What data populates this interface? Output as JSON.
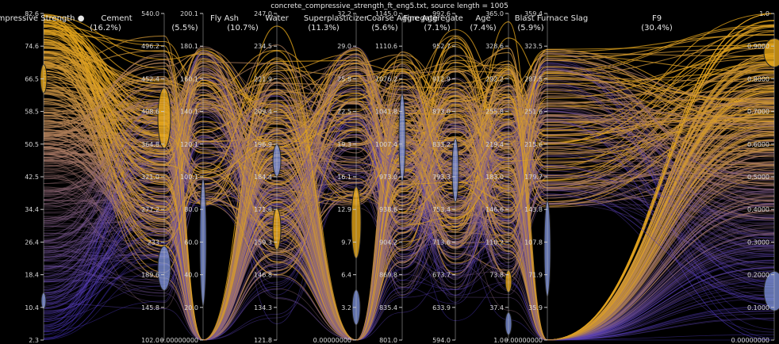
{
  "chart_data": {
    "type": "parallel-coordinates",
    "title": "concrete_compressive_strength_ft_eng5.txt, source length = 1005",
    "highlighted_axis": "Compressive Strength",
    "highlight_marker": "●",
    "colors": {
      "background": "#000000",
      "high": "#e8a817",
      "low": "#4a35c8",
      "axis_line": "#c9c9c9",
      "text": "#d8d8d8",
      "highlight_text": "#e8a817"
    },
    "axes": [
      {
        "name": "Compressive Strength",
        "percent": "",
        "min": 2.3,
        "max": 82.6,
        "ticks": [
          "82.6",
          "74.6",
          "66.5",
          "58.5",
          "50.5",
          "42.5",
          "34.4",
          "26.4",
          "18.4",
          "10.4",
          "2.3"
        ]
      },
      {
        "name": "Cement",
        "percent": "(16.2%)",
        "min": 102.0,
        "max": 540.0,
        "ticks": [
          "540.0",
          "496.2",
          "452.4",
          "408.6",
          "364.8",
          "321.0",
          "277.2",
          "233",
          "189.6",
          "145.8",
          "102.0"
        ]
      },
      {
        "name": "Fly Ash",
        "percent": "(5.5%)",
        "min": 0.0,
        "max": 200.1,
        "ticks": [
          "200.1",
          "180.1",
          "160.1",
          "140.1",
          "120.1",
          "100.1",
          "80.0",
          "60.0",
          "40.0",
          "20.0",
          "0.00000000"
        ]
      },
      {
        "name": "Water",
        "percent": "(10.7%)",
        "min": 121.8,
        "max": 247.0,
        "ticks": [
          "247.0",
          "234.5",
          "221.9",
          "209.4",
          "196.9",
          "184.4",
          "171.8",
          "159.3",
          "146.8",
          "134.3",
          "121.8"
        ]
      },
      {
        "name": "Superplasticizer",
        "percent": "(11.3%)",
        "min": 0.0,
        "max": 32.2,
        "ticks": [
          "32.2",
          "29.0",
          "25.8",
          "22.5",
          "19.3",
          "16.1",
          "12.9",
          "9.7",
          "6.4",
          "3.2",
          "0.00000000"
        ]
      },
      {
        "name": "Coarse Aggregate",
        "percent": "(5.6%)",
        "min": 801.0,
        "max": 1145.0,
        "ticks": [
          "1145.0",
          "1110.6",
          "1076.2",
          "1041.8",
          "1007.4",
          "973.0",
          "938.6",
          "904.2",
          "869.8",
          "835.4",
          "801.0"
        ]
      },
      {
        "name": "Fine Aggregate",
        "percent": "(7.1%)",
        "min": 594.0,
        "max": 992.6,
        "ticks": [
          "992.6",
          "952.7",
          "912.9",
          "873.0",
          "833.2",
          "793.3",
          "753.4",
          "713.6",
          "673.7",
          "633.9",
          "594.0"
        ]
      },
      {
        "name": "Age",
        "percent": "(7.4%)",
        "min": 1.0,
        "max": 365.0,
        "ticks": [
          "365.0",
          "328.6",
          "292.2",
          "255.8",
          "219.4",
          "183.0",
          "146.6",
          "110.2",
          "73.8",
          "37.4",
          "1.0"
        ]
      },
      {
        "name": "Blast Furnace Slag",
        "percent": "(5.9%)",
        "min": 0.0,
        "max": 359.4,
        "ticks": [
          "359.4",
          "323.5",
          "287.5",
          "251.6",
          "215.6",
          "179.7",
          "143.8",
          "107.8",
          "71.9",
          "35.9",
          "0.00000000"
        ]
      },
      {
        "name": "F9",
        "percent": "(30.4%)",
        "min": 0.0,
        "max": 1.0,
        "ticks": [
          "1.0",
          "0.9000",
          "0.8000",
          "0.7000",
          "0.6000",
          "0.5000",
          "0.4000",
          "0.3000",
          "0.2000",
          "0.1000",
          "0.00000000"
        ]
      }
    ]
  }
}
